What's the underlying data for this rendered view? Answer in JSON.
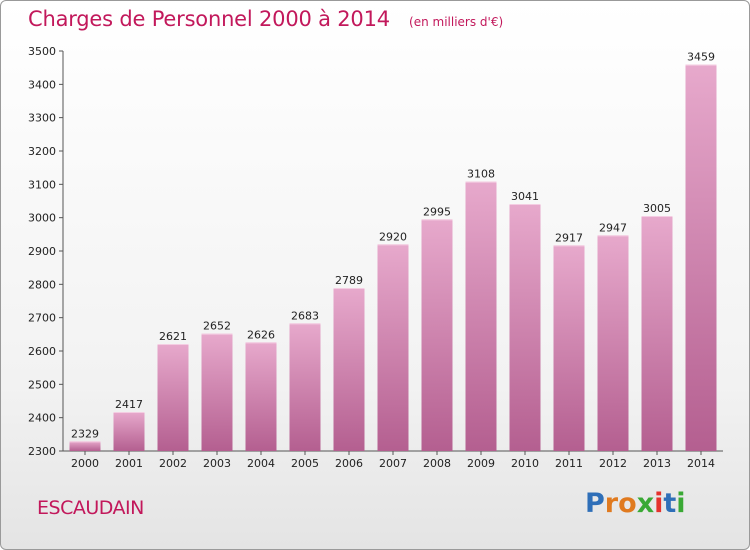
{
  "header": {
    "title": "Charges de Personnel 2000 à 2014",
    "subtitle": "(en milliers d'€)"
  },
  "commune": "ESCAUDAIN",
  "logo": {
    "text": "Proxiti",
    "letter_colors": [
      "#2f6fb8",
      "#e07a1f",
      "#e07a1f",
      "#3aa935",
      "#e5322d",
      "#2f6fb8",
      "#3aa935"
    ]
  },
  "chart_data": {
    "type": "bar",
    "categories": [
      "2000",
      "2001",
      "2002",
      "2003",
      "2004",
      "2005",
      "2006",
      "2007",
      "2008",
      "2009",
      "2010",
      "2011",
      "2012",
      "2013",
      "2014"
    ],
    "values": [
      2329,
      2417,
      2621,
      2652,
      2626,
      2683,
      2789,
      2920,
      2995,
      3108,
      3041,
      2917,
      2947,
      3005,
      3459
    ],
    "ylim": [
      2300,
      3500
    ],
    "yticks": [
      2300,
      2400,
      2500,
      2600,
      2700,
      2800,
      2900,
      3000,
      3100,
      3200,
      3300,
      3400,
      3500
    ],
    "grid": false,
    "bar_color": "#c8649a"
  }
}
